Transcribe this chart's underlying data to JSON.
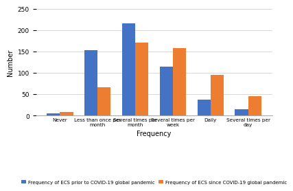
{
  "categories": [
    "Never",
    "Less than once per\nmonth",
    "Several times per\nmonth",
    "Several times per\nweek",
    "Daily",
    "Several times per\nday"
  ],
  "blue_values": [
    5,
    153,
    216,
    115,
    37,
    14
  ],
  "orange_values": [
    9,
    66,
    170,
    158,
    95,
    45
  ],
  "blue_color": "#4472C4",
  "orange_color": "#ED7D31",
  "xlabel": "Frequency",
  "ylabel": "Number",
  "ylim": [
    0,
    250
  ],
  "yticks": [
    0,
    50,
    100,
    150,
    200,
    250
  ],
  "legend_blue": "Frequency of ECS prior to COVID-19 global pandemic",
  "legend_orange": "Frequency of ECS since COVID-19 global pandemic",
  "background_color": "#ffffff",
  "grid_color": "#d9d9d9"
}
